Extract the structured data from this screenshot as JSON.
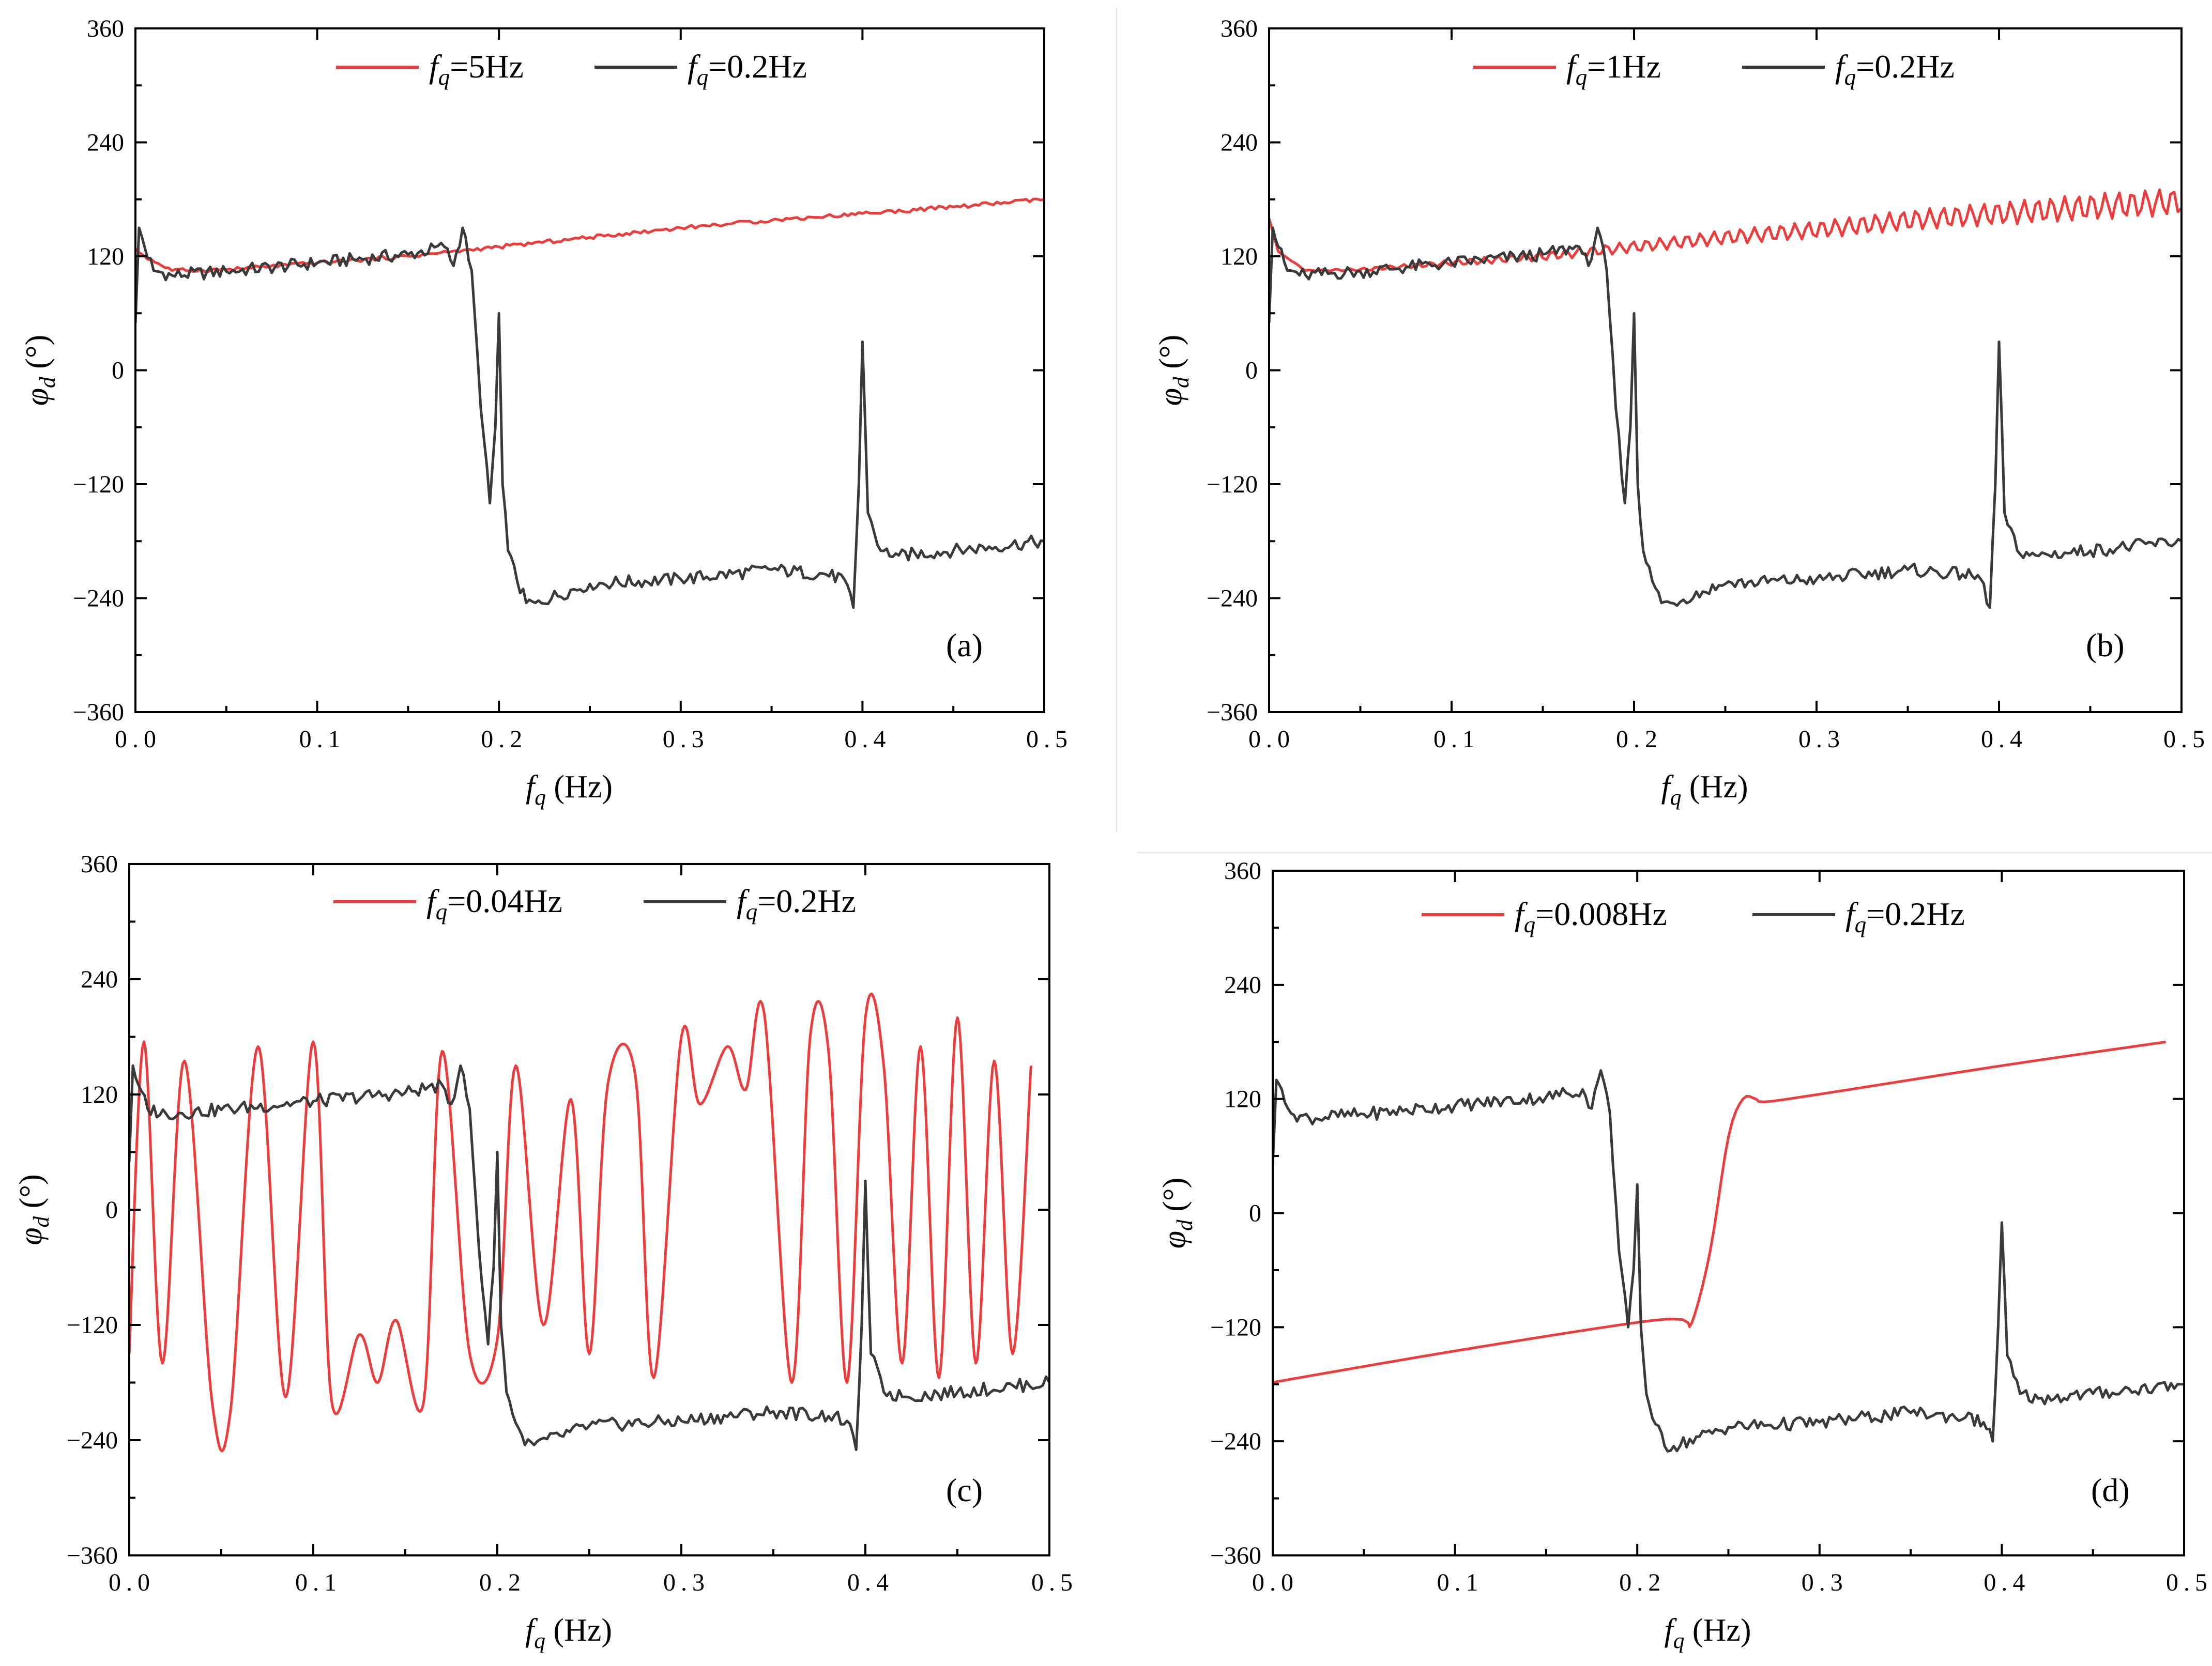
{
  "chart_data": [
    {
      "type": "line",
      "panel_label": "(a)",
      "xlabel": "f_q (Hz)",
      "ylabel": "φ_d (°)",
      "xlim": [
        0,
        0.5
      ],
      "ylim": [
        -360,
        360
      ],
      "x_tick_labels": [
        "0.0",
        "0.1",
        "0.2",
        "0.3",
        "0.4",
        "0.5"
      ],
      "y_tick_labels": [
        "-360",
        "-240",
        "-120",
        "0",
        "120",
        "240",
        "360"
      ],
      "legend": {
        "placement": "top"
      },
      "series": [
        {
          "name": "f_q=5Hz",
          "color": "#ee3b3b",
          "x": [
            0,
            0.005,
            0.02,
            0.05,
            0.1,
            0.15,
            0.2,
            0.25,
            0.3,
            0.35,
            0.4,
            0.45,
            0.5
          ],
          "y": [
            128,
            120,
            105,
            106,
            113,
            120,
            130,
            140,
            150,
            158,
            165,
            172,
            180
          ]
        },
        {
          "name": "f_q=0.2Hz",
          "color": "#3a3a3a",
          "x": [
            0,
            0.002,
            0.005,
            0.01,
            0.02,
            0.05,
            0.1,
            0.15,
            0.17,
            0.175,
            0.18,
            0.185,
            0.19,
            0.195,
            0.198,
            0.2,
            0.202,
            0.205,
            0.21,
            0.215,
            0.22,
            0.25,
            0.3,
            0.35,
            0.38,
            0.39,
            0.395,
            0.398,
            0.4,
            0.403,
            0.41,
            0.42,
            0.45,
            0.5
          ],
          "y": [
            50,
            150,
            130,
            105,
            100,
            104,
            113,
            122,
            130,
            110,
            150,
            105,
            -40,
            -140,
            -60,
            60,
            -120,
            -190,
            -222,
            -245,
            -245,
            -225,
            -220,
            -210,
            -215,
            -220,
            -250,
            -120,
            30,
            -150,
            -190,
            -195,
            -190,
            -180
          ]
        }
      ]
    },
    {
      "type": "line",
      "panel_label": "(b)",
      "xlabel": "f_q (Hz)",
      "ylabel": "φ_d (°)",
      "xlim": [
        0,
        0.5
      ],
      "ylim": [
        -360,
        360
      ],
      "x_tick_labels": [
        "0.0",
        "0.1",
        "0.2",
        "0.3",
        "0.4",
        "0.5"
      ],
      "y_tick_labels": [
        "-360",
        "-240",
        "-120",
        "0",
        "120",
        "240",
        "360"
      ],
      "legend": {
        "placement": "top"
      },
      "series": [
        {
          "name": "f_q=1Hz",
          "color": "#ee3b3b",
          "x": [
            0,
            0.005,
            0.02,
            0.05,
            0.1,
            0.15,
            0.2,
            0.25,
            0.3,
            0.35,
            0.4,
            0.45,
            0.5
          ],
          "y": [
            160,
            125,
            105,
            106,
            113,
            120,
            130,
            140,
            148,
            158,
            165,
            172,
            178
          ]
        },
        {
          "name": "f_q=0.2Hz",
          "color": "#3a3a3a",
          "x": [
            0,
            0.002,
            0.005,
            0.01,
            0.02,
            0.05,
            0.1,
            0.15,
            0.17,
            0.175,
            0.18,
            0.185,
            0.19,
            0.195,
            0.198,
            0.2,
            0.202,
            0.205,
            0.21,
            0.215,
            0.22,
            0.25,
            0.3,
            0.35,
            0.38,
            0.39,
            0.395,
            0.398,
            0.4,
            0.403,
            0.41,
            0.42,
            0.45,
            0.5
          ],
          "y": [
            50,
            150,
            130,
            105,
            100,
            104,
            113,
            122,
            130,
            110,
            150,
            105,
            -40,
            -140,
            -60,
            60,
            -120,
            -190,
            -222,
            -245,
            -245,
            -225,
            -220,
            -210,
            -215,
            -220,
            -250,
            -120,
            30,
            -150,
            -190,
            -195,
            -190,
            -180
          ]
        }
      ]
    },
    {
      "type": "line",
      "panel_label": "(c)",
      "xlabel": "f_q (Hz)",
      "ylabel": "φ_d (°)",
      "xlim": [
        0,
        0.5
      ],
      "ylim": [
        -360,
        360
      ],
      "x_tick_labels": [
        "0.0",
        "0.1",
        "0.2",
        "0.3",
        "0.4",
        "0.5"
      ],
      "y_tick_labels": [
        "-360",
        "-240",
        "-120",
        "0",
        "120",
        "240",
        "360"
      ],
      "legend": {
        "placement": "top"
      },
      "series": [
        {
          "name": "f_q=0.04Hz",
          "color": "#ee3b3b",
          "x": [
            0,
            0.008,
            0.018,
            0.03,
            0.045,
            0.055,
            0.07,
            0.085,
            0.1,
            0.11,
            0.125,
            0.135,
            0.145,
            0.16,
            0.17,
            0.185,
            0.2,
            0.21,
            0.225,
            0.24,
            0.25,
            0.26,
            0.275,
            0.285,
            0.3,
            0.31,
            0.325,
            0.335,
            0.345,
            0.36,
            0.37,
            0.38,
            0.39,
            0.4,
            0.41,
            0.42,
            0.43,
            0.44,
            0.45,
            0.46,
            0.47,
            0.48,
            0.49
          ],
          "y": [
            -150,
            175,
            -160,
            155,
            -200,
            -210,
            170,
            -195,
            175,
            -200,
            -130,
            -180,
            -115,
            -200,
            165,
            -150,
            -135,
            150,
            -120,
            115,
            -150,
            130,
            140,
            -175,
            180,
            110,
            170,
            125,
            205,
            -180,
            180,
            165,
            -180,
            200,
            150,
            -160,
            170,
            -175,
            200,
            -160,
            155,
            -150,
            150
          ]
        },
        {
          "name": "f_q=0.2Hz",
          "color": "#3a3a3a",
          "x": [
            0,
            0.002,
            0.005,
            0.01,
            0.02,
            0.05,
            0.1,
            0.15,
            0.17,
            0.175,
            0.18,
            0.185,
            0.19,
            0.195,
            0.198,
            0.2,
            0.202,
            0.205,
            0.21,
            0.215,
            0.22,
            0.25,
            0.3,
            0.35,
            0.38,
            0.39,
            0.395,
            0.398,
            0.4,
            0.403,
            0.41,
            0.42,
            0.45,
            0.5
          ],
          "y": [
            50,
            150,
            130,
            105,
            100,
            104,
            113,
            122,
            130,
            110,
            150,
            105,
            -40,
            -140,
            -60,
            60,
            -120,
            -190,
            -222,
            -245,
            -245,
            -225,
            -220,
            -210,
            -215,
            -220,
            -250,
            -120,
            30,
            -150,
            -190,
            -195,
            -190,
            -180
          ]
        }
      ]
    },
    {
      "type": "line",
      "panel_label": "(d)",
      "xlabel": "f_q (Hz)",
      "ylabel": "φ_d (°)",
      "xlim": [
        0,
        0.5
      ],
      "ylim": [
        -360,
        360
      ],
      "x_tick_labels": [
        "0.0",
        "0.1",
        "0.2",
        "0.3",
        "0.4",
        "0.5"
      ],
      "y_tick_labels": [
        "-360",
        "-240",
        "-120",
        "0",
        "120",
        "240",
        "360"
      ],
      "legend": {
        "placement": "top"
      },
      "series": [
        {
          "name": "f_q=0.008Hz",
          "color": "#ee3b3b",
          "x": [
            0,
            0.1,
            0.2,
            0.225,
            0.23,
            0.24,
            0.25,
            0.258,
            0.265,
            0.27,
            0.3,
            0.4,
            0.49
          ],
          "y": [
            -178,
            -145,
            -115,
            -112,
            -115,
            -40,
            80,
            120,
            120,
            117,
            125,
            155,
            180
          ]
        },
        {
          "name": "f_q=0.2Hz",
          "color": "#3a3a3a",
          "x": [
            0,
            0.002,
            0.005,
            0.01,
            0.02,
            0.05,
            0.1,
            0.15,
            0.17,
            0.175,
            0.18,
            0.185,
            0.19,
            0.195,
            0.198,
            0.2,
            0.202,
            0.205,
            0.21,
            0.215,
            0.22,
            0.25,
            0.3,
            0.35,
            0.38,
            0.39,
            0.395,
            0.398,
            0.4,
            0.403,
            0.41,
            0.42,
            0.45,
            0.5
          ],
          "y": [
            50,
            140,
            130,
            105,
            100,
            104,
            113,
            122,
            130,
            110,
            150,
            105,
            -40,
            -120,
            -60,
            30,
            -120,
            -190,
            -222,
            -245,
            -245,
            -225,
            -220,
            -210,
            -215,
            -220,
            -240,
            -120,
            -10,
            -150,
            -190,
            -195,
            -190,
            -180
          ]
        }
      ]
    }
  ]
}
